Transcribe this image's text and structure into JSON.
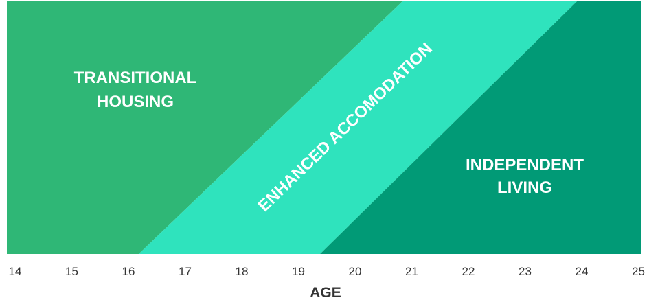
{
  "colors": {
    "transitional": "#2fb776",
    "enhanced": "#2fe3bd",
    "independent": "#019a76",
    "text": "#333333",
    "label": "#ffffff"
  },
  "bands": {
    "transitional": {
      "line1": "TRANSITIONAL",
      "line2": "HOUSING"
    },
    "enhanced": {
      "label": "ENHANCED ACCOMODATION"
    },
    "independent": {
      "line1": "INDEPENDENT",
      "line2": "LIVING"
    }
  },
  "axis": {
    "title": "AGE",
    "ticks": [
      "14",
      "15",
      "16",
      "17",
      "18",
      "19",
      "20",
      "21",
      "22",
      "23",
      "24",
      "25"
    ]
  }
}
